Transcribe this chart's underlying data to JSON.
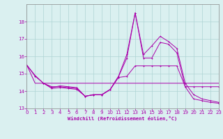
{
  "xlabel": "Windchill (Refroidissement éolien,°C)",
  "background_color": "#daf0f0",
  "grid_color": "#aed4d4",
  "line_color": "#aa00aa",
  "xmin": 0,
  "xmax": 23,
  "ymin": 13,
  "ymax": 19,
  "yticks": [
    13,
    14,
    15,
    16,
    17,
    18
  ],
  "xticks": [
    0,
    1,
    2,
    3,
    4,
    5,
    6,
    7,
    8,
    9,
    10,
    11,
    12,
    13,
    14,
    15,
    16,
    17,
    18,
    19,
    20,
    21,
    22,
    23
  ],
  "series1_x": [
    0,
    1,
    2,
    3,
    4,
    5,
    6,
    7,
    8,
    9,
    10,
    11,
    12,
    13,
    14,
    15,
    16,
    17,
    18,
    19,
    20,
    21,
    22,
    23
  ],
  "series1_y": [
    15.5,
    14.9,
    14.45,
    14.2,
    14.3,
    14.25,
    14.2,
    13.7,
    13.8,
    13.8,
    14.1,
    14.85,
    16.1,
    18.5,
    16.1,
    16.6,
    17.15,
    16.85,
    16.45,
    14.45,
    13.8,
    13.55,
    13.45,
    13.35
  ],
  "series2_x": [
    0,
    1,
    2,
    3,
    4,
    5,
    6,
    7,
    8,
    9,
    10,
    11,
    12,
    13,
    14,
    15,
    16,
    17,
    18,
    19,
    20,
    21,
    22,
    23
  ],
  "series2_y": [
    15.5,
    14.45,
    14.45,
    14.45,
    14.45,
    14.45,
    14.45,
    14.45,
    14.45,
    14.45,
    14.45,
    14.45,
    14.45,
    14.45,
    14.45,
    14.45,
    14.45,
    14.45,
    14.45,
    14.45,
    14.45,
    14.45,
    14.45,
    14.45
  ],
  "series3_x": [
    0,
    1,
    2,
    3,
    4,
    5,
    6,
    7,
    8,
    9,
    10,
    11,
    12,
    13,
    14,
    15,
    16,
    17,
    18,
    19,
    20,
    21,
    22,
    23
  ],
  "series3_y": [
    15.5,
    14.85,
    14.45,
    14.25,
    14.25,
    14.2,
    14.15,
    13.7,
    13.78,
    13.78,
    14.08,
    14.82,
    15.9,
    18.5,
    15.9,
    15.9,
    16.8,
    16.7,
    16.2,
    14.25,
    14.25,
    14.25,
    14.25,
    14.25
  ],
  "series4_x": [
    2,
    3,
    4,
    5,
    6,
    7,
    8,
    9,
    10,
    11,
    12,
    13,
    14,
    15,
    16,
    17,
    18,
    19,
    20,
    21,
    22,
    23
  ],
  "series4_y": [
    14.45,
    14.15,
    14.2,
    14.15,
    14.1,
    13.7,
    13.78,
    13.78,
    14.08,
    14.78,
    14.85,
    15.45,
    15.45,
    15.45,
    15.45,
    15.45,
    15.45,
    14.25,
    13.55,
    13.45,
    13.35,
    13.3
  ]
}
